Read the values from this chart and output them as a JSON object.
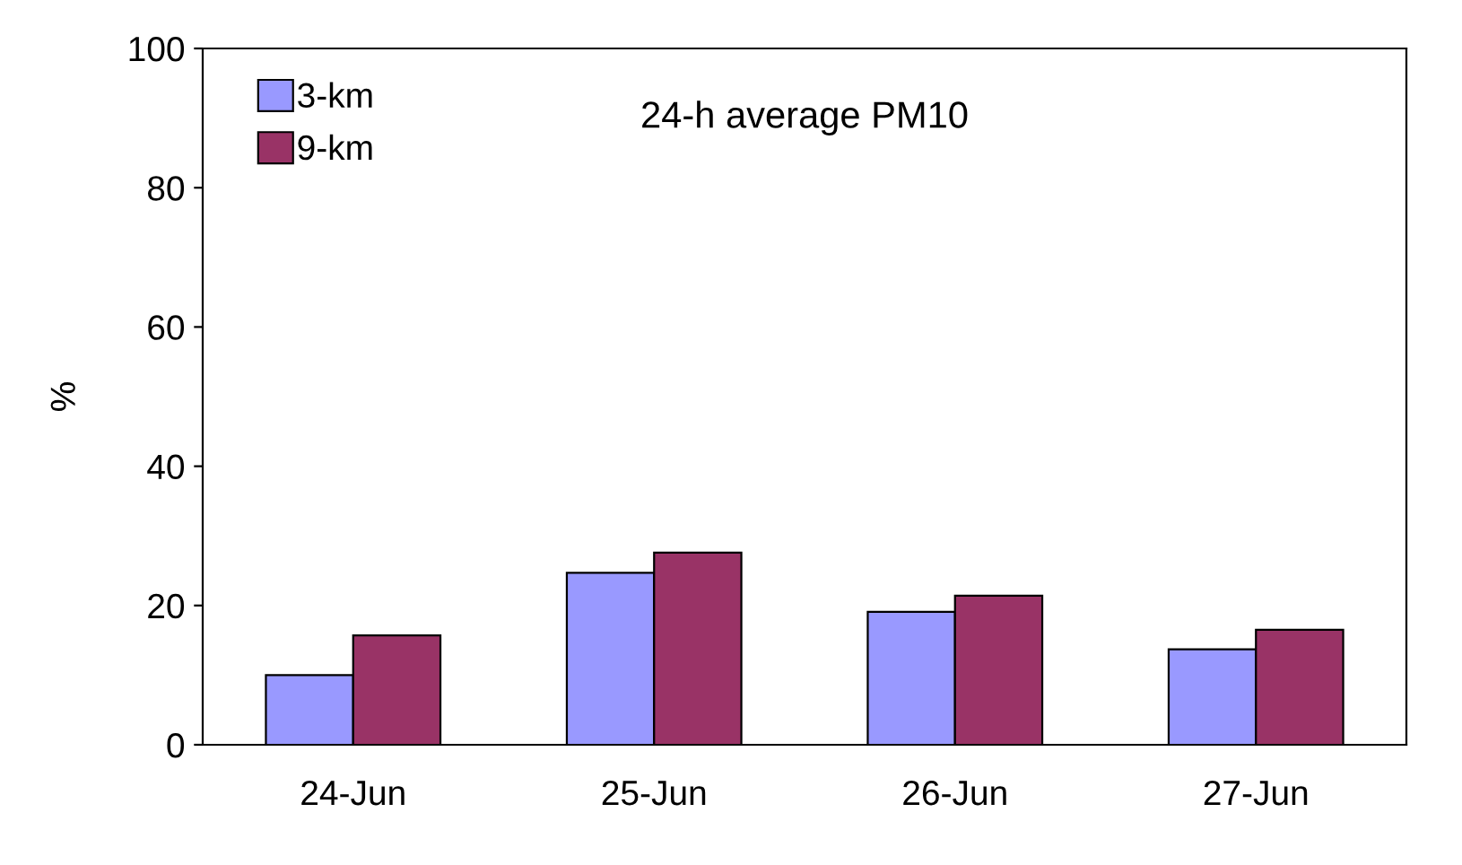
{
  "chart_data": {
    "type": "bar",
    "title": "24-h average PM10",
    "ylabel": "%",
    "categories": [
      "24-Jun",
      "25-Jun",
      "26-Jun",
      "27-Jun"
    ],
    "series": [
      {
        "name": "3-km",
        "color": "#9999ff",
        "values": [
          10,
          24.7,
          19.1,
          13.7
        ]
      },
      {
        "name": "9-km",
        "color": "#993366",
        "values": [
          15.7,
          27.6,
          21.4,
          16.5
        ]
      }
    ],
    "ylim": [
      0,
      100
    ],
    "yticks": [
      0,
      20,
      40,
      60,
      80,
      100
    ],
    "grid": false,
    "legend": "top left"
  }
}
